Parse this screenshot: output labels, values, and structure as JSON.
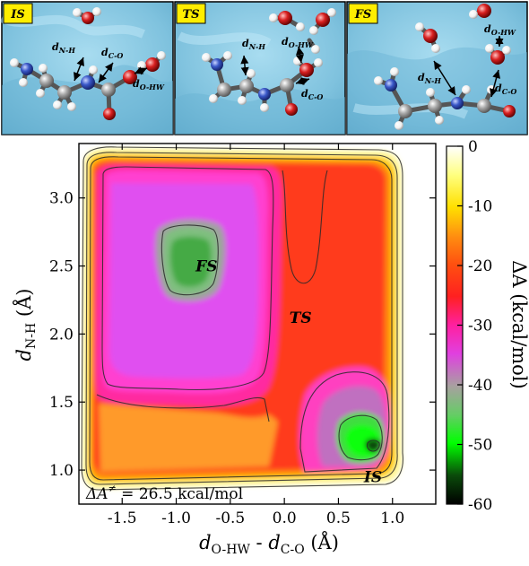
{
  "panels": [
    {
      "tag": "IS",
      "labels": [
        {
          "main": "d",
          "sub": "N-H"
        },
        {
          "main": "d",
          "sub": "C-O"
        },
        {
          "main": "d",
          "sub": "O-HW"
        }
      ]
    },
    {
      "tag": "TS",
      "labels": [
        {
          "main": "d",
          "sub": "N-H"
        },
        {
          "main": "d",
          "sub": "O-HW"
        },
        {
          "main": "d",
          "sub": "C-O"
        }
      ]
    },
    {
      "tag": "FS",
      "labels": [
        {
          "main": "d",
          "sub": "O-HW"
        },
        {
          "main": "d",
          "sub": "N-H"
        },
        {
          "main": "d",
          "sub": "C-O"
        }
      ]
    }
  ],
  "colors": {
    "water": "#7fc2de",
    "panel_border": "#000000",
    "tag_bg": "#ffee00",
    "carbon": "#9a9a9a",
    "nitrogen": "#3a58c8",
    "oxygen": "#d82020",
    "hydrogen": "#ffffff"
  },
  "chart_data": {
    "type": "heatmap",
    "x_range": [
      -1.9,
      1.4
    ],
    "y_range": [
      0.75,
      3.4
    ],
    "x_ticks": [
      "-1.5",
      "-1.0",
      "-0.5",
      "0.0",
      "0.5",
      "1.0"
    ],
    "x_tick_values": [
      -1.5,
      -1.0,
      -0.5,
      0.0,
      0.5,
      1.0
    ],
    "y_ticks": [
      "1.0",
      "1.5",
      "2.0",
      "2.5",
      "3.0"
    ],
    "y_tick_values": [
      1.0,
      1.5,
      2.0,
      2.5,
      3.0
    ],
    "x_label": {
      "main": "d",
      "sub1": "O-HW",
      "mid": " - ",
      "main2": "d",
      "sub2": "C-O",
      "unit": " (Å)"
    },
    "y_label": {
      "main": "d",
      "sub": "N-H",
      "unit": " (Å)"
    },
    "colorbar": {
      "label": "ΔA (kcal/mol)",
      "min": -60,
      "max": 0,
      "ticks": [
        "0",
        "-10",
        "-20",
        "-30",
        "-40",
        "-50",
        "-60"
      ],
      "tick_values": [
        0,
        -10,
        -20,
        -30,
        -40,
        -50,
        -60
      ]
    },
    "annotations": [
      {
        "text": "FS",
        "x": -0.72,
        "y": 2.5
      },
      {
        "text": "TS",
        "x": 0.15,
        "y": 2.12
      },
      {
        "text": "IS",
        "x": 0.82,
        "y": 0.95
      }
    ],
    "barrier_text": {
      "prefix": "ΔA",
      "sup": "≠",
      "rest": " = 26.5 kcal/mol"
    }
  }
}
